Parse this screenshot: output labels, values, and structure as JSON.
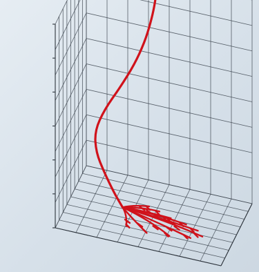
{
  "chart_data": {
    "type": "line3d",
    "title": "",
    "zlabel": "",
    "xlabel": "",
    "ylabel": "",
    "z_ticks": [
      "",
      "",
      "",
      "",
      "",
      "",
      ""
    ],
    "grid": true,
    "colors": {
      "trace": "#d0121b",
      "grid": "#3e4650",
      "background": "#dfe7ee"
    },
    "series": [
      {
        "role": "stem",
        "points": [
          [
            0.46,
            0.8,
            1.0
          ],
          [
            0.45,
            0.79,
            0.93
          ],
          [
            0.43,
            0.77,
            0.85
          ],
          [
            0.4,
            0.74,
            0.76
          ],
          [
            0.35,
            0.68,
            0.66
          ],
          [
            0.28,
            0.6,
            0.56
          ],
          [
            0.2,
            0.52,
            0.46
          ],
          [
            0.15,
            0.47,
            0.36
          ],
          [
            0.16,
            0.46,
            0.26
          ],
          [
            0.21,
            0.46,
            0.17
          ],
          [
            0.27,
            0.46,
            0.08
          ],
          [
            0.32,
            0.46,
            0.02
          ]
        ]
      }
    ],
    "branches": [
      {
        "from": [
          0.32,
          0.46,
          0.02
        ],
        "to": [
          0.45,
          0.62,
          0.0
        ]
      },
      {
        "from": [
          0.32,
          0.46,
          0.02
        ],
        "to": [
          0.52,
          0.58,
          0.0
        ]
      },
      {
        "from": [
          0.32,
          0.46,
          0.02
        ],
        "to": [
          0.6,
          0.52,
          0.0
        ]
      },
      {
        "from": [
          0.32,
          0.46,
          0.02
        ],
        "to": [
          0.7,
          0.48,
          0.0
        ]
      },
      {
        "from": [
          0.32,
          0.46,
          0.02
        ],
        "to": [
          0.78,
          0.43,
          0.0
        ]
      },
      {
        "from": [
          0.32,
          0.46,
          0.02
        ],
        "to": [
          0.82,
          0.36,
          0.0
        ]
      },
      {
        "from": [
          0.32,
          0.46,
          0.02
        ],
        "to": [
          0.76,
          0.3,
          0.0
        ]
      },
      {
        "from": [
          0.32,
          0.46,
          0.02
        ],
        "to": [
          0.64,
          0.26,
          0.0
        ]
      },
      {
        "from": [
          0.32,
          0.46,
          0.02
        ],
        "to": [
          0.5,
          0.24,
          0.0
        ]
      },
      {
        "from": [
          0.32,
          0.46,
          0.02
        ],
        "to": [
          0.38,
          0.26,
          0.0
        ]
      }
    ]
  }
}
